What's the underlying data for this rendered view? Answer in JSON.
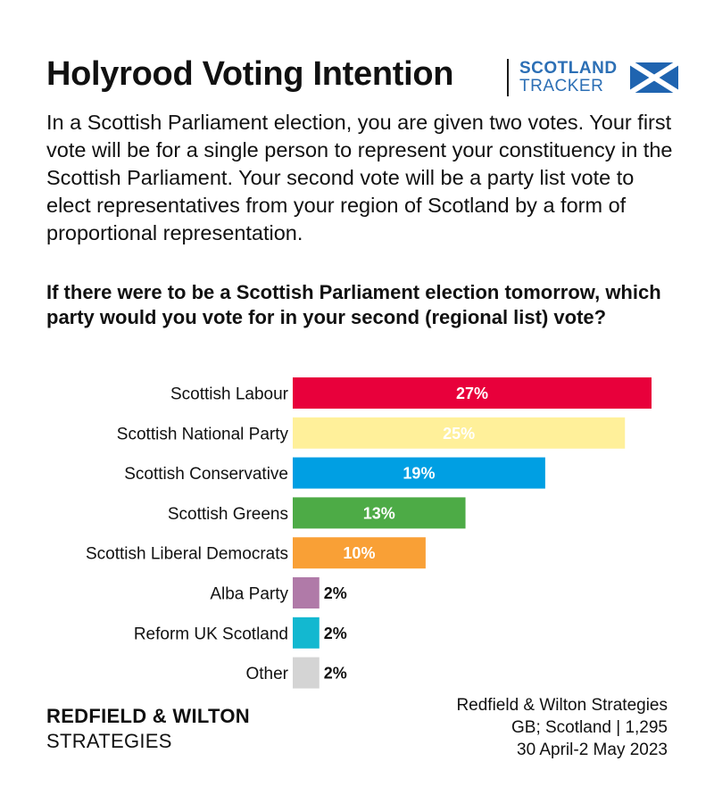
{
  "header": {
    "title": "Holyrood Voting Intention",
    "tracker_line1": "SCOTLAND",
    "tracker_line2": "TRACKER",
    "flag_icon": "saltire-flag-icon"
  },
  "intro": "In a Scottish Parliament election, you are given two votes. Your first vote will be for a single person to represent your constituency in the Scottish Parliament. Your second vote will be a party list vote to elect representatives from your region of Scotland by a form of proportional representation.",
  "question": "If there were to be a Scottish Parliament election tomorrow, which party would you vote for in your second (regional list) vote?",
  "chart_data": {
    "type": "bar",
    "orientation": "horizontal",
    "categories": [
      "Scottish Labour",
      "Scottish National Party",
      "Scottish Conservative",
      "Scottish Greens",
      "Scottish Liberal Democrats",
      "Alba Party",
      "Reform UK Scotland",
      "Other"
    ],
    "values": [
      27,
      25,
      19,
      13,
      10,
      2,
      2,
      2
    ],
    "value_labels": [
      "27%",
      "25%",
      "19%",
      "13%",
      "10%",
      "2%",
      "2%",
      "2%"
    ],
    "colors": [
      "#e8003b",
      "#fff09a",
      "#009fe3",
      "#4dab46",
      "#f9a036",
      "#b07aa8",
      "#13b8d0",
      "#d4d4d4"
    ],
    "xlim": [
      0,
      27
    ],
    "grid": false,
    "legend": "none"
  },
  "footer": {
    "brand_line1": "REDFIELD & WILTON",
    "brand_line2": "STRATEGIES",
    "source_line1": "Redfield & Wilton Strategies",
    "source_line2": "GB; Scotland | 1,295",
    "source_line3": "30 April-2 May 2023"
  }
}
